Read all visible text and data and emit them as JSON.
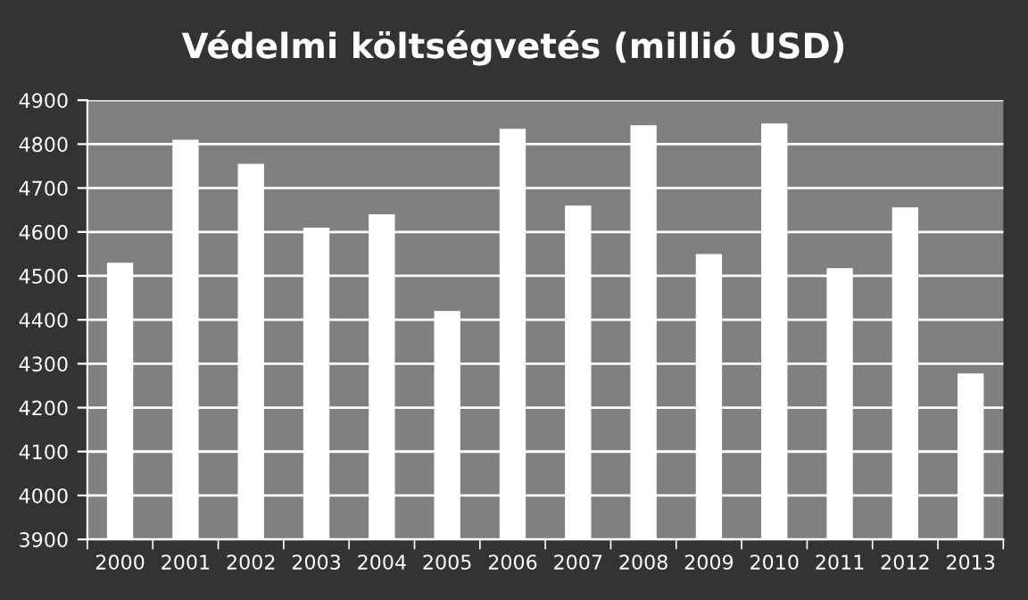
{
  "chart_data": {
    "type": "bar",
    "title": "Védelmi költségvetés (millió USD)",
    "categories": [
      "2000",
      "2001",
      "2002",
      "2003",
      "2004",
      "2005",
      "2006",
      "2007",
      "2008",
      "2009",
      "2010",
      "2011",
      "2012",
      "2013"
    ],
    "values": [
      4530,
      4810,
      4755,
      4610,
      4640,
      4420,
      4835,
      4660,
      4843,
      4550,
      4847,
      4518,
      4656,
      4278
    ],
    "color": "#ffffff",
    "ylim": [
      3900,
      4900
    ],
    "yticks": [
      3900,
      4000,
      4100,
      4200,
      4300,
      4400,
      4500,
      4600,
      4700,
      4800,
      4900
    ],
    "grid": "y"
  }
}
